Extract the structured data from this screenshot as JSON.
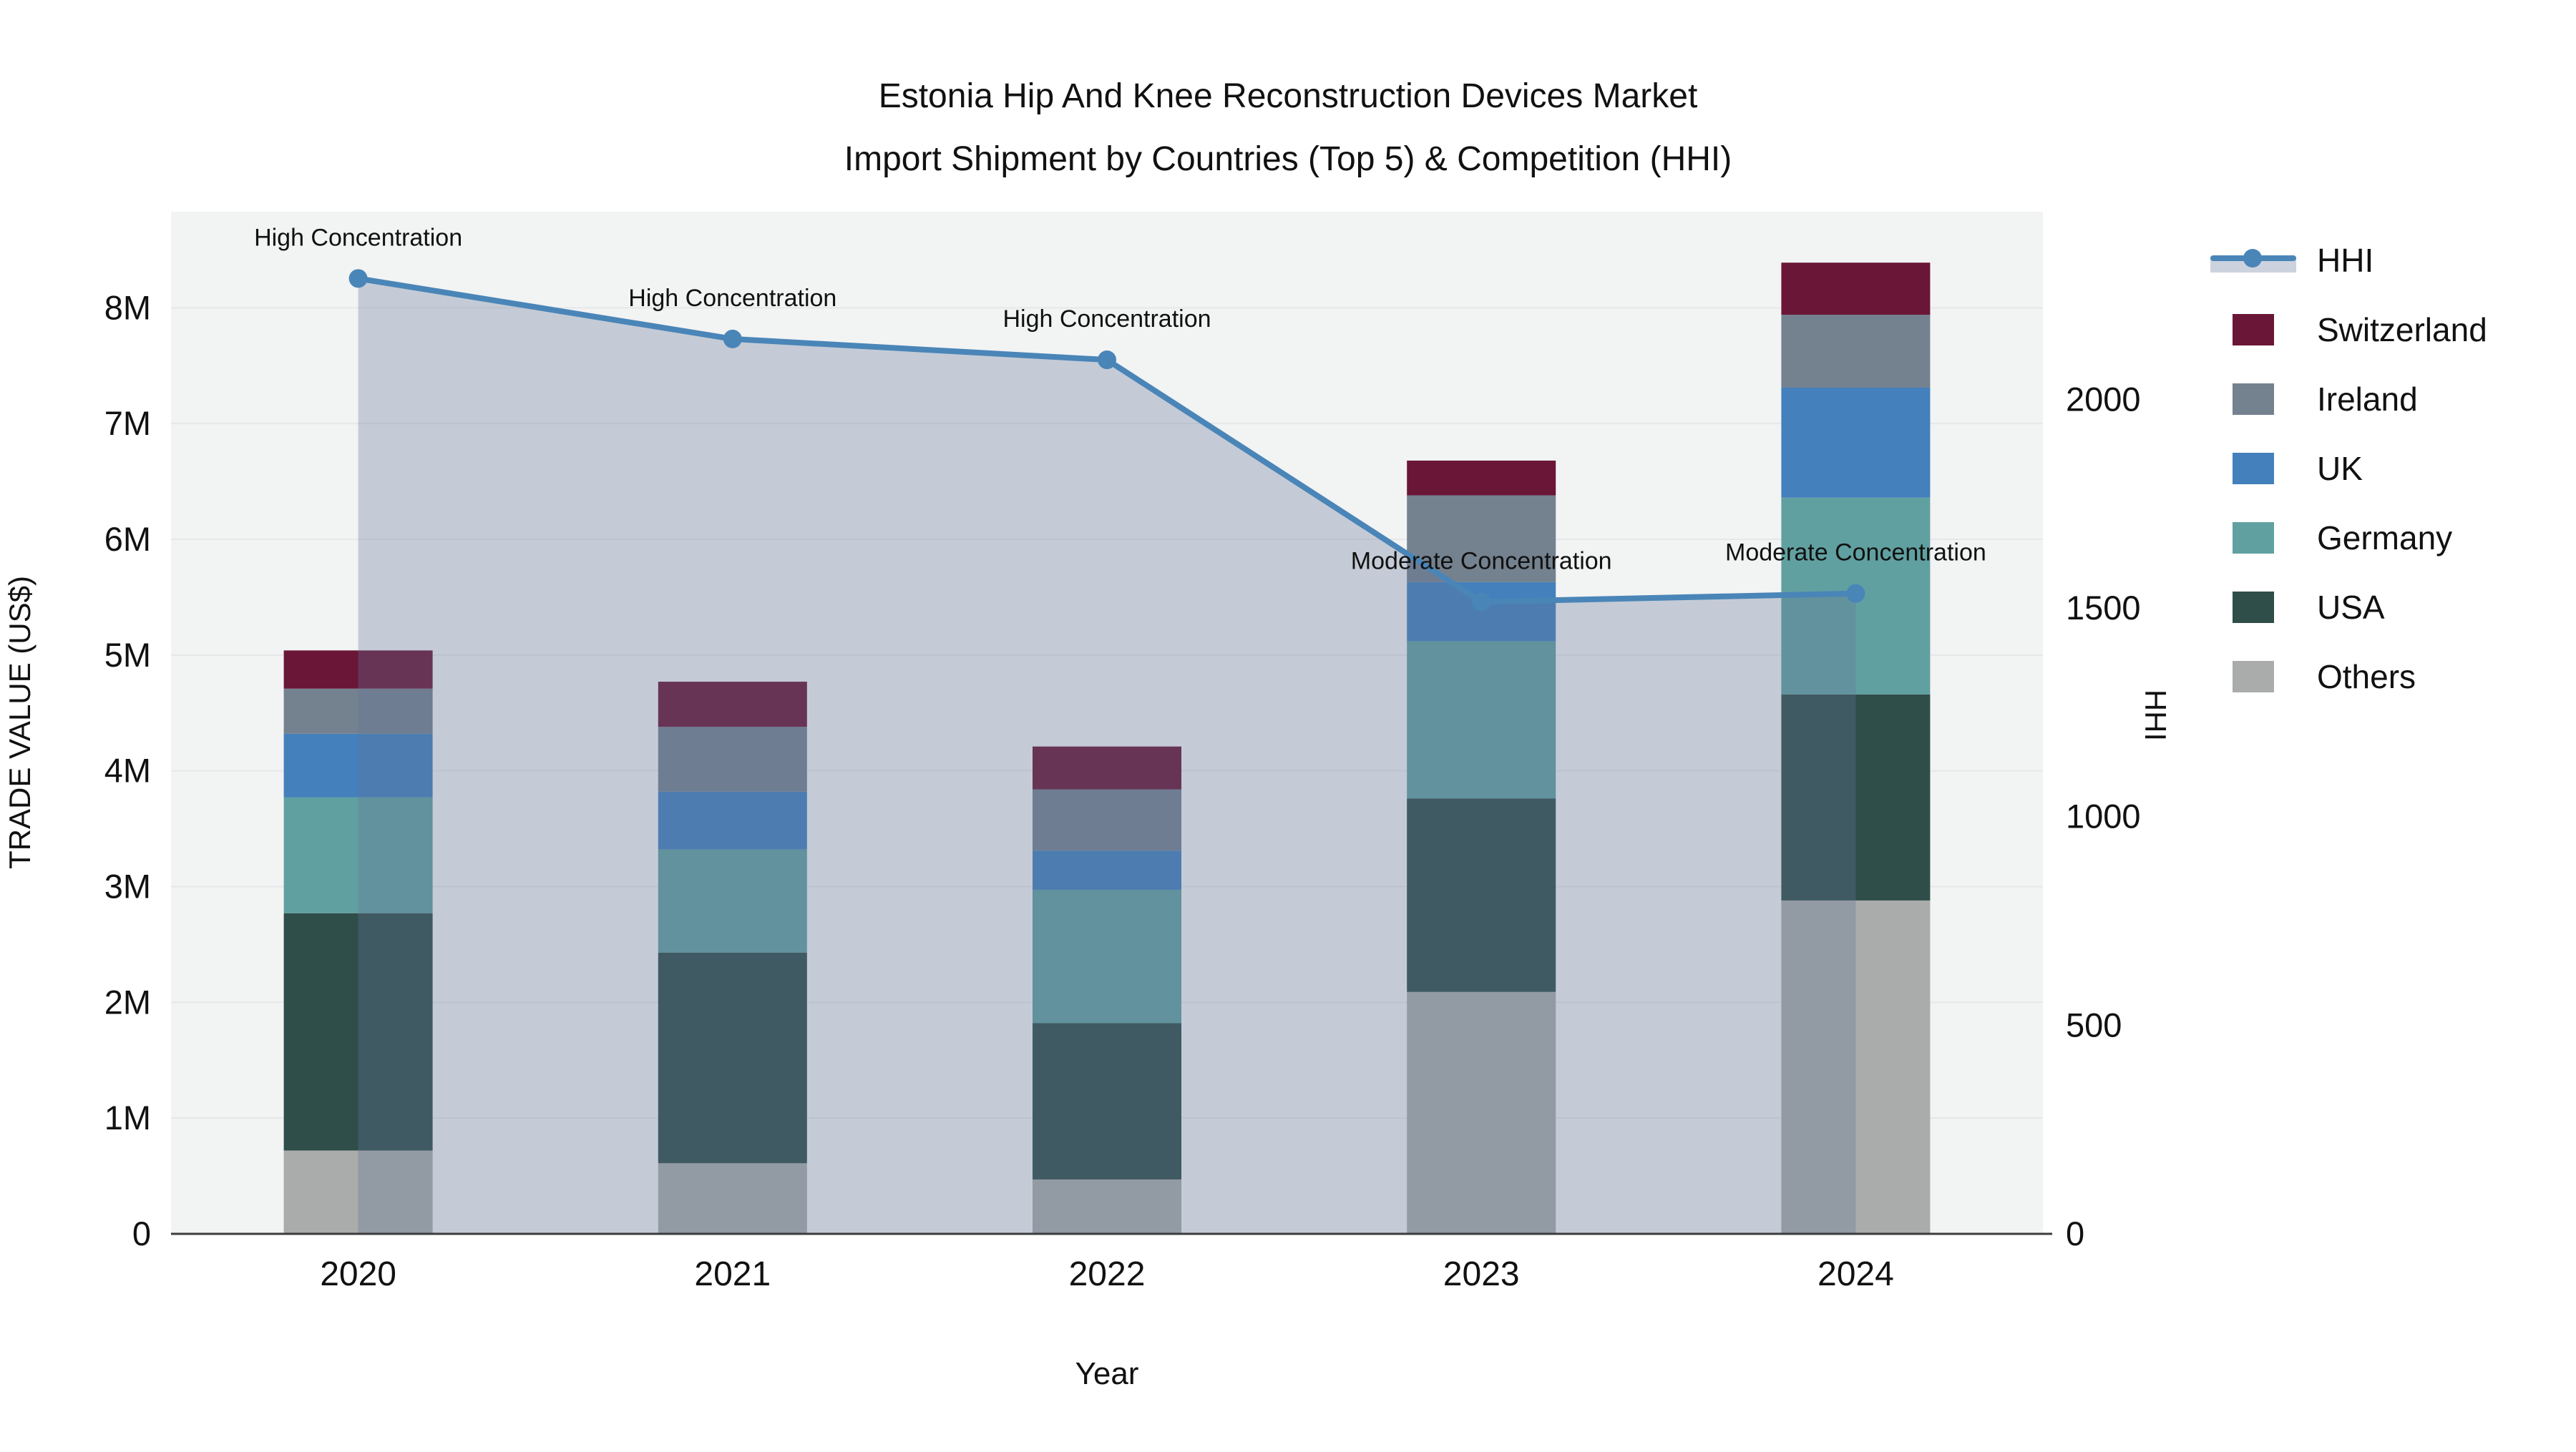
{
  "title": {
    "line1": "Estonia Hip And Knee Reconstruction Devices Market",
    "line2": "Import Shipment by Countries (Top 5) & Competition (HHI)"
  },
  "axes": {
    "x": {
      "label": "Year",
      "tick_labels": [
        "2020",
        "2021",
        "2022",
        "2023",
        "2024"
      ]
    },
    "y_left": {
      "label": "TRADE VALUE (US$)",
      "tick_labels": [
        "0",
        "1M",
        "2M",
        "3M",
        "4M",
        "5M",
        "6M",
        "7M",
        "8M"
      ],
      "tick_values_musd": [
        0,
        1,
        2,
        3,
        4,
        5,
        6,
        7,
        8
      ],
      "max_musd": 8.83
    },
    "y_right": {
      "label": "HHI",
      "tick_labels": [
        "0",
        "500",
        "1000",
        "1500",
        "2000"
      ],
      "tick_values": [
        0,
        500,
        1000,
        1500,
        2000
      ],
      "max": 2450
    }
  },
  "chart_data": {
    "type": "stacked-bar + line (dual axis)",
    "title": "Estonia Hip And Knee Reconstruction Devices Market Import Shipment by Countries (Top 5) & Competition (HHI)",
    "categories": [
      "2020",
      "2021",
      "2022",
      "2023",
      "2024"
    ],
    "units": "left axis: million US$, right axis: HHI index",
    "series": [
      {
        "name": "Others",
        "values_musd": [
          0.72,
          0.61,
          0.47,
          2.09,
          2.88
        ]
      },
      {
        "name": "USA",
        "values_musd": [
          2.05,
          1.82,
          1.35,
          1.67,
          1.78
        ]
      },
      {
        "name": "Germany",
        "values_musd": [
          1.0,
          0.89,
          1.15,
          1.36,
          1.7
        ]
      },
      {
        "name": "UK",
        "values_musd": [
          0.55,
          0.5,
          0.34,
          0.51,
          0.95
        ]
      },
      {
        "name": "Ireland",
        "values_musd": [
          0.39,
          0.56,
          0.53,
          0.75,
          0.63
        ]
      },
      {
        "name": "Switzerland",
        "values_musd": [
          0.33,
          0.39,
          0.37,
          0.3,
          0.45
        ]
      }
    ],
    "totals_musd": [
      5.04,
      4.77,
      4.21,
      6.68,
      8.39
    ],
    "hhi": {
      "name": "HHI",
      "values": [
        2290,
        2145,
        2095,
        1515,
        1535
      ]
    },
    "annotations": [
      {
        "category": "2020",
        "text": "High Concentration"
      },
      {
        "category": "2021",
        "text": "High Concentration"
      },
      {
        "category": "2022",
        "text": "High Concentration"
      },
      {
        "category": "2023",
        "text": "Moderate Concentration"
      },
      {
        "category": "2024",
        "text": "Moderate Concentration"
      }
    ],
    "legend_position": "right",
    "grid": "horizontal"
  },
  "legend": {
    "items": [
      {
        "label": "HHI",
        "type": "line",
        "color": "#4A85B8"
      },
      {
        "label": "Switzerland",
        "type": "box",
        "color": "#6A1637"
      },
      {
        "label": "Ireland",
        "type": "box",
        "color": "#74818F"
      },
      {
        "label": "UK",
        "type": "box",
        "color": "#4380BC"
      },
      {
        "label": "Germany",
        "type": "box",
        "color": "#61A0A0"
      },
      {
        "label": "USA",
        "type": "box",
        "color": "#2F4D49"
      },
      {
        "label": "Others",
        "type": "box",
        "color": "#A9ACAA"
      }
    ]
  },
  "colors": {
    "Others": "#A9ACAA",
    "USA": "#2F4D49",
    "Germany": "#61A0A0",
    "UK": "#4380BC",
    "Ireland": "#74818F",
    "Switzerland": "#6A1637",
    "hhi_line": "#4A85B8",
    "area_fill": "rgba(100,118,152,0.32)",
    "plot_bg": "#F2F3F3",
    "grid": "#E6E7E9",
    "axis_line": "#3C3C3C",
    "text": "#111111"
  }
}
